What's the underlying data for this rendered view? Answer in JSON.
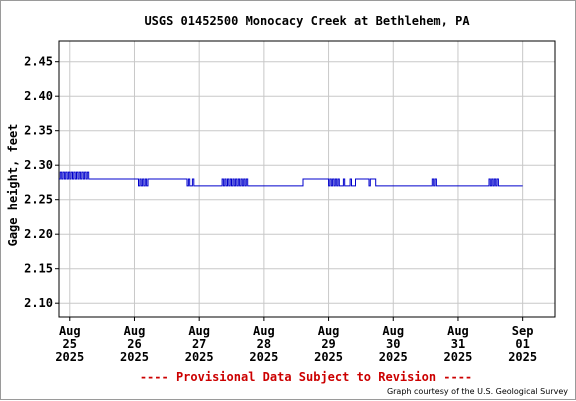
{
  "chart_data": {
    "type": "line",
    "title": "USGS 01452500 Monocacy Creek at Bethlehem, PA",
    "ylabel": "Gage height, feet",
    "xlabel": "",
    "ylim": [
      2.08,
      2.48
    ],
    "yticks": [
      "2.10",
      "2.15",
      "2.20",
      "2.25",
      "2.30",
      "2.35",
      "2.40",
      "2.45"
    ],
    "xlim": [
      "2025-08-24T20:00",
      "2025-09-01T12:00"
    ],
    "xticks": [
      {
        "month": "Aug",
        "day": "25",
        "year": "2025"
      },
      {
        "month": "Aug",
        "day": "26",
        "year": "2025"
      },
      {
        "month": "Aug",
        "day": "27",
        "year": "2025"
      },
      {
        "month": "Aug",
        "day": "28",
        "year": "2025"
      },
      {
        "month": "Aug",
        "day": "29",
        "year": "2025"
      },
      {
        "month": "Aug",
        "day": "30",
        "year": "2025"
      },
      {
        "month": "Aug",
        "day": "31",
        "year": "2025"
      },
      {
        "month": "Sep",
        "day": "01",
        "year": "2025"
      }
    ],
    "grid": true,
    "series": [
      {
        "color": "#0000cc",
        "x": [
          "2025-08-24T20:00",
          "2025-08-24T20:30",
          "2025-08-24T21:00",
          "2025-08-24T21:30",
          "2025-08-24T22:00",
          "2025-08-24T22:30",
          "2025-08-24T23:00",
          "2025-08-24T23:30",
          "2025-08-25T00:00",
          "2025-08-25T00:30",
          "2025-08-25T01:00",
          "2025-08-25T01:30",
          "2025-08-25T02:00",
          "2025-08-25T02:30",
          "2025-08-25T03:00",
          "2025-08-25T03:30",
          "2025-08-25T04:00",
          "2025-08-25T04:30",
          "2025-08-25T05:00",
          "2025-08-25T05:30",
          "2025-08-25T06:00",
          "2025-08-25T06:30",
          "2025-08-25T07:00",
          "2025-08-26T01:00",
          "2025-08-26T01:30",
          "2025-08-26T02:00",
          "2025-08-26T02:30",
          "2025-08-26T03:00",
          "2025-08-26T03:30",
          "2025-08-26T04:00",
          "2025-08-26T04:30",
          "2025-08-26T05:00",
          "2025-08-26T19:00",
          "2025-08-26T19:30",
          "2025-08-26T20:00",
          "2025-08-26T20:30",
          "2025-08-26T21:00",
          "2025-08-26T21:30",
          "2025-08-26T22:00",
          "2025-08-27T08:00",
          "2025-08-27T08:30",
          "2025-08-27T09:00",
          "2025-08-27T09:30",
          "2025-08-27T10:00",
          "2025-08-27T10:30",
          "2025-08-27T11:00",
          "2025-08-27T11:30",
          "2025-08-27T12:00",
          "2025-08-27T12:30",
          "2025-08-27T13:00",
          "2025-08-27T13:30",
          "2025-08-27T14:00",
          "2025-08-27T14:30",
          "2025-08-27T15:00",
          "2025-08-27T15:30",
          "2025-08-27T16:00",
          "2025-08-27T16:30",
          "2025-08-27T17:00",
          "2025-08-27T17:30",
          "2025-08-27T18:00",
          "2025-08-28T04:00",
          "2025-08-28T14:00",
          "2025-08-28T14:30",
          "2025-08-28T15:00",
          "2025-08-28T15:30",
          "2025-08-28T16:00",
          "2025-08-28T16:30",
          "2025-08-28T17:00",
          "2025-08-28T17:30",
          "2025-08-28T18:00",
          "2025-08-28T18:30",
          "2025-08-28T19:00",
          "2025-08-28T19:30",
          "2025-08-28T20:00",
          "2025-08-28T20:30",
          "2025-08-28T21:00",
          "2025-08-28T21:30",
          "2025-08-28T22:00",
          "2025-08-28T22:30",
          "2025-08-28T23:00",
          "2025-08-28T23:30",
          "2025-08-29T00:00",
          "2025-08-29T00:30",
          "2025-08-29T01:00",
          "2025-08-29T01:30",
          "2025-08-29T02:00",
          "2025-08-29T02:30",
          "2025-08-29T03:00",
          "2025-08-29T03:30",
          "2025-08-29T04:00",
          "2025-08-29T04:30",
          "2025-08-29T05:00",
          "2025-08-29T05:30",
          "2025-08-29T06:00",
          "2025-08-29T06:30",
          "2025-08-29T07:00",
          "2025-08-29T07:30",
          "2025-08-29T08:00",
          "2025-08-29T08:30",
          "2025-08-29T09:00",
          "2025-08-29T09:30",
          "2025-08-29T10:00",
          "2025-08-29T10:30",
          "2025-08-29T14:00",
          "2025-08-29T14:30",
          "2025-08-29T15:00",
          "2025-08-29T15:30",
          "2025-08-29T16:00",
          "2025-08-29T16:30",
          "2025-08-29T17:00",
          "2025-08-29T17:30",
          "2025-08-30T14:00",
          "2025-08-30T14:30",
          "2025-08-30T15:00",
          "2025-08-30T15:30",
          "2025-08-30T16:00",
          "2025-08-31T11:00",
          "2025-08-31T11:30",
          "2025-08-31T12:00",
          "2025-08-31T12:30",
          "2025-08-31T13:00",
          "2025-08-31T13:30",
          "2025-08-31T14:00",
          "2025-08-31T14:30",
          "2025-08-31T15:00",
          "2025-08-31T15:30",
          "2025-08-31T16:00",
          "2025-09-01T00:00"
        ],
        "y": [
          2.28,
          2.29,
          2.28,
          2.29,
          2.28,
          2.29,
          2.28,
          2.29,
          2.28,
          2.29,
          2.28,
          2.29,
          2.28,
          2.29,
          2.28,
          2.29,
          2.28,
          2.29,
          2.28,
          2.29,
          2.28,
          2.29,
          2.28,
          2.28,
          2.27,
          2.28,
          2.27,
          2.28,
          2.27,
          2.28,
          2.27,
          2.28,
          2.28,
          2.27,
          2.28,
          2.27,
          2.27,
          2.28,
          2.27,
          2.27,
          2.28,
          2.27,
          2.28,
          2.27,
          2.28,
          2.27,
          2.28,
          2.27,
          2.28,
          2.27,
          2.28,
          2.27,
          2.28,
          2.27,
          2.28,
          2.27,
          2.28,
          2.27,
          2.28,
          2.27,
          2.27,
          2.27,
          2.28,
          2.28,
          2.28,
          2.28,
          2.28,
          2.28,
          2.28,
          2.28,
          2.28,
          2.28,
          2.28,
          2.28,
          2.28,
          2.28,
          2.28,
          2.28,
          2.28,
          2.28,
          2.28,
          2.27,
          2.28,
          2.27,
          2.28,
          2.27,
          2.28,
          2.27,
          2.28,
          2.27,
          2.27,
          2.27,
          2.28,
          2.27,
          2.27,
          2.27,
          2.27,
          2.28,
          2.27,
          2.27,
          2.27,
          2.28,
          2.28,
          2.28,
          2.28,
          2.27,
          2.28,
          2.28,
          2.28,
          2.28,
          2.27,
          2.27,
          2.28,
          2.27,
          2.28,
          2.27,
          2.27,
          2.28,
          2.27,
          2.28,
          2.27,
          2.28,
          2.27,
          2.28,
          2.27,
          2.27,
          2.27,
          2.27
        ]
      }
    ],
    "footer_note": "---- Provisional Data Subject to Revision ----",
    "credit": "Graph courtesy of the U.S. Geological Survey",
    "colors": {
      "line": "#0000cc",
      "grid": "#c8c8c8",
      "axes": "#000000",
      "note": "#cc0000"
    }
  }
}
